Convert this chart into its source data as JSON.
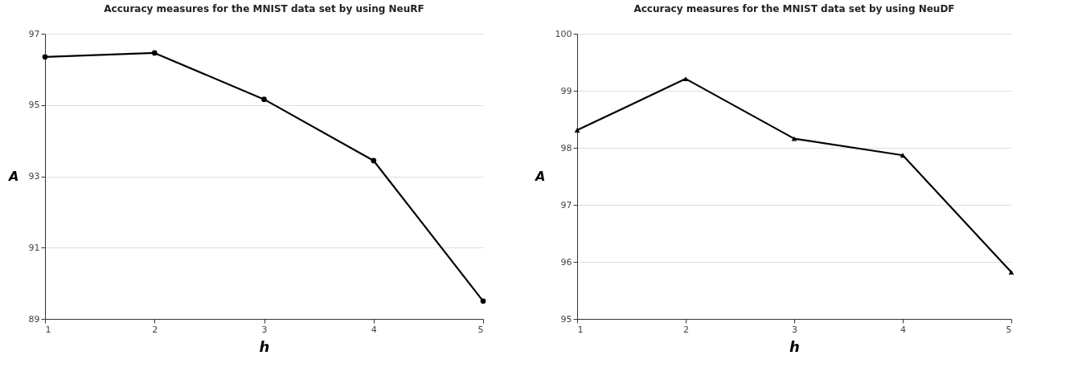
{
  "chart_data": [
    {
      "type": "line",
      "title": "Accuracy measures for the MNIST data set by using NeuRF",
      "xlabel": "h",
      "ylabel": "A",
      "x": [
        1,
        2,
        3,
        4,
        5
      ],
      "series": [
        {
          "color": "#000000",
          "values": [
            96.35,
            96.46,
            95.16,
            93.44,
            89.5
          ]
        }
      ],
      "xlim": [
        1,
        5
      ],
      "xticks": [
        1,
        2,
        3,
        4,
        5
      ],
      "ylim": [
        89,
        97
      ],
      "yticks": [
        89,
        91,
        93,
        95,
        97
      ],
      "grid": "y",
      "marker": "circle",
      "line_style": "solid",
      "legend": false
    },
    {
      "type": "line",
      "title": "Accuracy measures for the MNIST data set by using NeuDF",
      "xlabel": "h",
      "ylabel": "A",
      "x": [
        1,
        2,
        3,
        4,
        5
      ],
      "series": [
        {
          "color": "#000000",
          "values": [
            98.31,
            99.21,
            98.16,
            97.87,
            95.82
          ]
        }
      ],
      "xlim": [
        1,
        5
      ],
      "xticks": [
        1,
        2,
        3,
        4,
        5
      ],
      "ylim": [
        95,
        100
      ],
      "yticks": [
        95,
        96,
        97,
        98,
        99,
        100
      ],
      "grid": "y",
      "marker": "triangle",
      "line_style": "solid",
      "legend": false
    }
  ]
}
